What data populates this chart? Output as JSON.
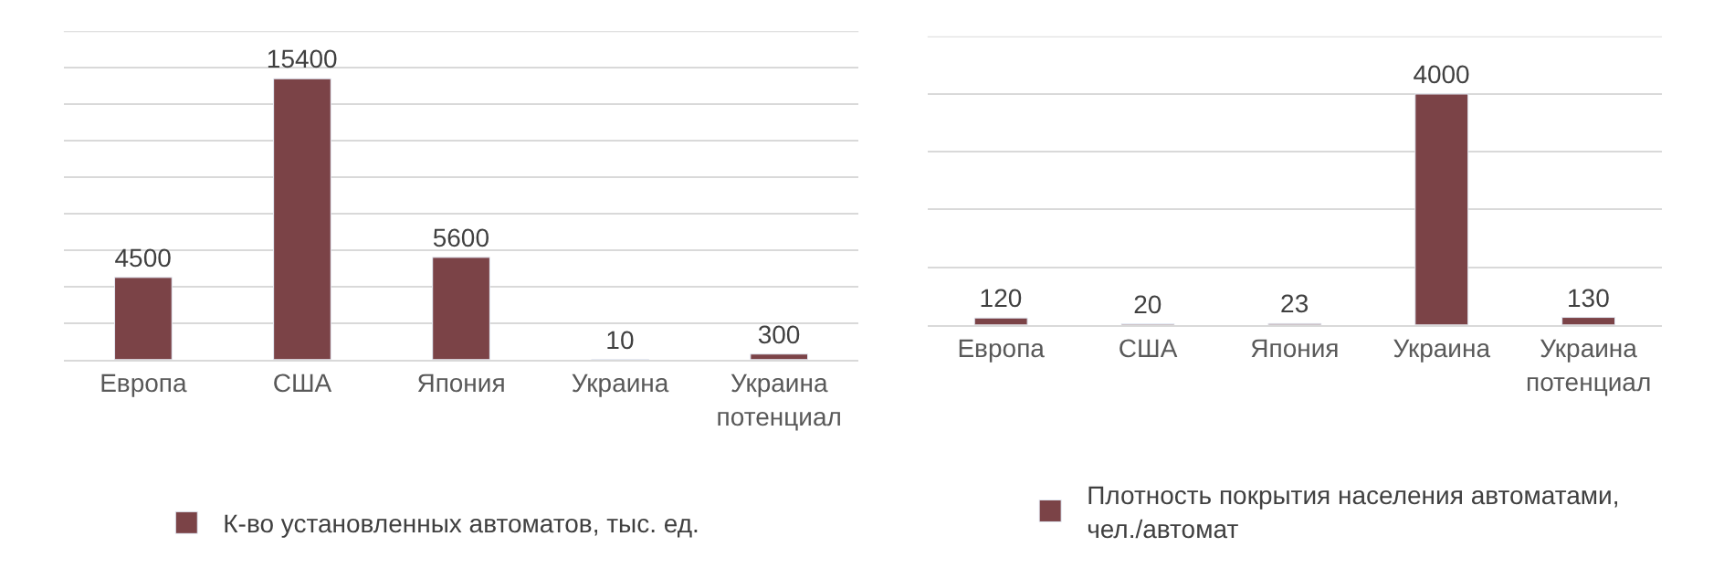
{
  "chart_data": [
    {
      "type": "bar",
      "categories": [
        "Европа",
        "США",
        "Япония",
        "Украина",
        "Украина потенциал"
      ],
      "series": [
        {
          "name": "К-во установленных автоматов, тыс. ед.",
          "color": "#7b4347",
          "values": [
            4500,
            15400,
            5600,
            10,
            300
          ]
        }
      ],
      "data_labels": true,
      "ylim": [
        0,
        18000
      ],
      "yticks": [
        {
          "value": 0,
          "label": null
        },
        {
          "value": 2000,
          "label": null
        },
        {
          "value": 4000,
          "label": null
        },
        {
          "value": 6000,
          "label": null
        },
        {
          "value": 8000,
          "label": null
        },
        {
          "value": 10000,
          "label": null
        },
        {
          "value": 12000,
          "label": null
        },
        {
          "value": 14000,
          "label": null
        },
        {
          "value": 16000,
          "label": null
        },
        {
          "value": 18000,
          "label": null
        }
      ],
      "grid": "y",
      "legend": "bottom"
    },
    {
      "type": "bar",
      "categories": [
        "Европа",
        "США",
        "Япония",
        "Украина",
        "Украина потенциал"
      ],
      "series": [
        {
          "name": "Плотность покрытия населения автоматами, чел./автомат",
          "color": "#7b4347",
          "values": [
            120,
            20,
            23,
            4000,
            130
          ]
        }
      ],
      "data_labels": true,
      "ylim": [
        0,
        5000
      ],
      "yticks": [
        {
          "value": 0,
          "label": null
        },
        {
          "value": 1000,
          "label": null
        },
        {
          "value": 2000,
          "label": null
        },
        {
          "value": 3000,
          "label": null
        },
        {
          "value": 4000,
          "label": null
        },
        {
          "value": 5000,
          "label": null
        }
      ],
      "grid": "y",
      "legend": "bottom"
    }
  ]
}
